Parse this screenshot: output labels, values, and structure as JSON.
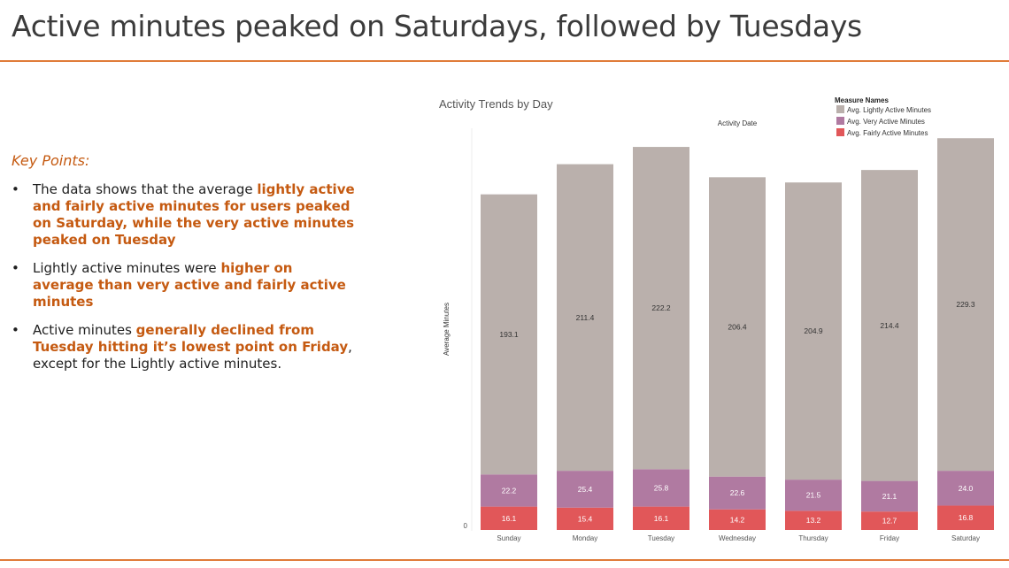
{
  "slide": {
    "title": "Active minutes peaked on Saturdays, followed by Tuesdays"
  },
  "key_points": {
    "heading": "Key Points:",
    "bullet": "•",
    "items": [
      {
        "pre": "The data shows that the average ",
        "hl": "lightly active and fairly active minutes for users peaked on Saturday, while the very active minutes peaked on Tuesday",
        "post": ""
      },
      {
        "pre": "Lightly active minutes were ",
        "hl": "higher on average than very active and fairly active minutes",
        "post": ""
      },
      {
        "pre": "Active minutes ",
        "hl": "generally declined from Tuesday hitting it’s lowest point on Friday",
        "post": ", except for the Lightly active minutes."
      }
    ]
  },
  "chart_data": {
    "type": "bar",
    "stacked": true,
    "title": "Activity Trends by Day",
    "subtitle": "Activity Date",
    "ylabel": "Average Minutes",
    "xlabel": "",
    "y_tick_labels": [
      "0"
    ],
    "ylim": [
      0,
      280
    ],
    "grid": false,
    "legend": {
      "title": "Measure Names",
      "position": "top-right"
    },
    "categories": [
      "Sunday",
      "Monday",
      "Tuesday",
      "Wednesday",
      "Thursday",
      "Friday",
      "Saturday"
    ],
    "series": [
      {
        "name": "Avg. Fairly Active Minutes",
        "color": "#e15759",
        "values": [
          16.1,
          15.4,
          16.1,
          14.2,
          13.2,
          12.7,
          16.8
        ]
      },
      {
        "name": "Avg. Very Active Minutes",
        "color": "#b07aa1",
        "values": [
          22.2,
          25.4,
          25.8,
          22.6,
          21.5,
          21.1,
          24.0
        ]
      },
      {
        "name": "Avg. Lightly Active Minutes",
        "color": "#bab0ac",
        "values": [
          193.1,
          211.4,
          222.2,
          206.4,
          204.9,
          214.4,
          229.3
        ]
      }
    ],
    "legend_order": [
      "Avg. Lightly Active Minutes",
      "Avg. Very Active Minutes",
      "Avg. Fairly Active Minutes"
    ]
  }
}
